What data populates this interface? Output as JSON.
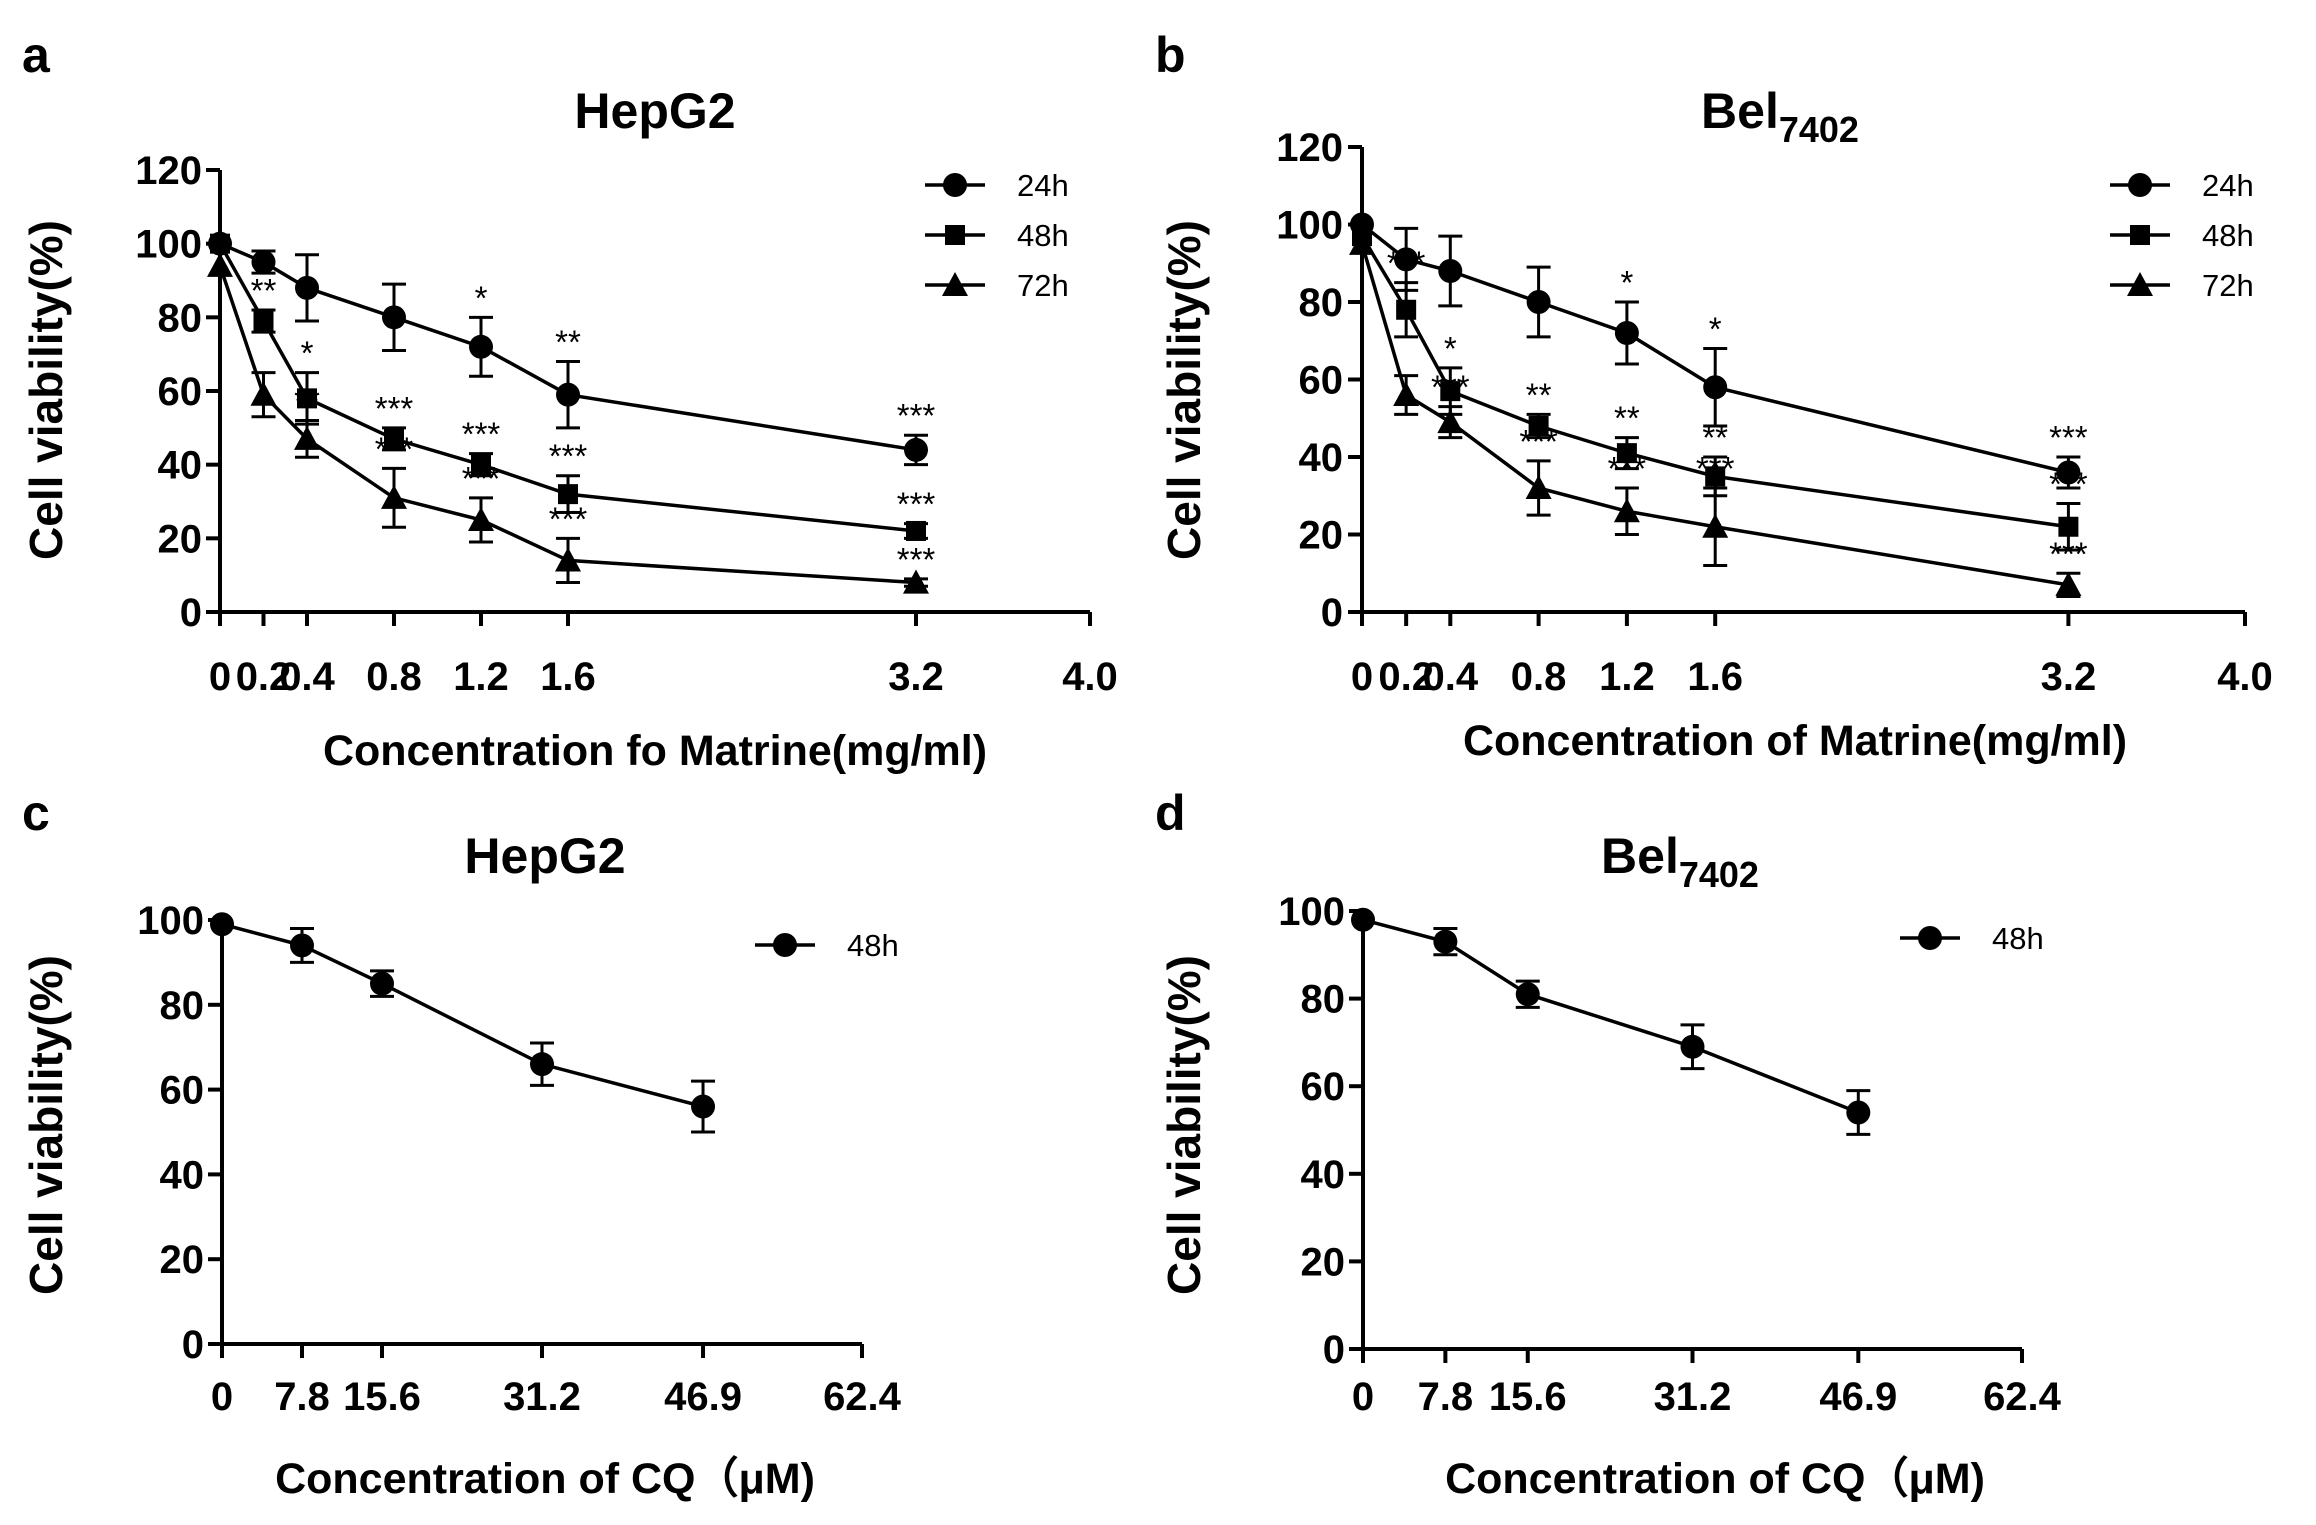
{
  "chart_data": [
    {
      "panel": "a",
      "type": "line",
      "title": "HepG2",
      "title_subscript": "",
      "xlabel": "Concentration fo Matrine(mg/ml)",
      "ylabel": "Cell viability(%)",
      "xlim": [
        0,
        4.0
      ],
      "ylim": [
        0,
        120
      ],
      "x_ticks": [
        0,
        0.2,
        0.4,
        0.8,
        1.2,
        1.6,
        3.2,
        4.0
      ],
      "x_tick_labels": [
        "0",
        "0.2",
        "0.4",
        "0.8",
        "1.2",
        "1.6",
        "3.2",
        "4.0"
      ],
      "y_ticks": [
        0,
        20,
        40,
        60,
        80,
        100,
        120
      ],
      "x": [
        0,
        0.2,
        0.4,
        0.8,
        1.2,
        1.6,
        3.2
      ],
      "legend_position": "top-right",
      "series": [
        {
          "name": "24h",
          "marker": "circle",
          "values": [
            100,
            95,
            88,
            80,
            72,
            59,
            44
          ],
          "errors": [
            0,
            3,
            9,
            9,
            8,
            9,
            4
          ],
          "labels": [
            "",
            "",
            "",
            "",
            "*",
            "**",
            "***"
          ]
        },
        {
          "name": "48h",
          "marker": "square",
          "values": [
            100,
            79,
            58,
            47,
            40,
            32,
            22
          ],
          "errors": [
            0,
            3,
            7,
            3,
            3,
            5,
            2
          ],
          "labels": [
            "",
            "**",
            "*",
            "***",
            "***",
            "***",
            "***"
          ]
        },
        {
          "name": "72h",
          "marker": "triangle",
          "values": [
            94,
            59,
            47,
            31,
            25,
            14,
            8
          ],
          "errors": [
            0,
            6,
            5,
            8,
            6,
            6,
            1
          ],
          "labels": [
            "",
            "",
            "**",
            "***",
            "***",
            "***",
            "***"
          ]
        }
      ]
    },
    {
      "panel": "b",
      "type": "line",
      "title": "Bel",
      "title_subscript": "7402",
      "xlabel": "Concentration of Matrine(mg/ml)",
      "ylabel": "Cell viability(%)",
      "xlim": [
        0,
        4.0
      ],
      "ylim": [
        0,
        120
      ],
      "x_ticks": [
        0,
        0.2,
        0.4,
        0.8,
        1.2,
        1.6,
        3.2,
        4.0
      ],
      "x_tick_labels": [
        "0",
        "0.2",
        "0.4",
        "0.8",
        "1.2",
        "1.6",
        "3.2",
        "4.0"
      ],
      "y_ticks": [
        0,
        20,
        40,
        60,
        80,
        100,
        120
      ],
      "x": [
        0,
        0.2,
        0.4,
        0.8,
        1.2,
        1.6,
        3.2
      ],
      "legend_position": "top-right",
      "series": [
        {
          "name": "24h",
          "marker": "circle",
          "values": [
            100,
            91,
            88,
            80,
            72,
            58,
            36
          ],
          "errors": [
            0,
            8,
            9,
            9,
            8,
            10,
            4
          ],
          "labels": [
            "",
            "",
            "",
            "",
            "*",
            "*",
            "***"
          ]
        },
        {
          "name": "48h",
          "marker": "square",
          "values": [
            97,
            78,
            57,
            48,
            41,
            35,
            22
          ],
          "errors": [
            0,
            7,
            6,
            3,
            4,
            5,
            6
          ],
          "labels": [
            "",
            "***",
            "*",
            "**",
            "**",
            "**",
            "***"
          ]
        },
        {
          "name": "72h",
          "marker": "triangle",
          "values": [
            95,
            56,
            49,
            32,
            26,
            22,
            7
          ],
          "errors": [
            0,
            5,
            4,
            7,
            6,
            10,
            3
          ],
          "labels": [
            "",
            "",
            "***",
            "***",
            "***",
            "***",
            "***"
          ]
        }
      ]
    },
    {
      "panel": "c",
      "type": "line",
      "title": "HepG2",
      "title_subscript": "",
      "xlabel": "Concentration of CQ（μM)",
      "ylabel": "Cell viability(%)",
      "xlim": [
        0,
        62.4
      ],
      "ylim": [
        0,
        100
      ],
      "x_ticks": [
        0,
        7.8,
        15.6,
        31.2,
        46.9,
        62.4
      ],
      "x_tick_labels": [
        "0",
        "7.8",
        "15.6",
        "31.2",
        "46.9",
        "62.4"
      ],
      "y_ticks": [
        0,
        20,
        40,
        60,
        80,
        100
      ],
      "x": [
        0,
        7.8,
        15.6,
        31.2,
        46.9
      ],
      "legend_position": "top-right",
      "series": [
        {
          "name": "48h",
          "marker": "circle",
          "values": [
            99,
            94,
            85,
            66,
            56
          ],
          "errors": [
            0,
            4,
            3,
            5,
            6
          ],
          "labels": [
            "",
            "",
            "",
            "",
            ""
          ]
        }
      ]
    },
    {
      "panel": "d",
      "type": "line",
      "title": "Bel",
      "title_subscript": "7402",
      "xlabel": "Concentration of CQ（μM)",
      "ylabel": "Cell viability(%)",
      "xlim": [
        0,
        62.4
      ],
      "ylim": [
        0,
        100
      ],
      "x_ticks": [
        0,
        7.8,
        15.6,
        31.2,
        46.9,
        62.4
      ],
      "x_tick_labels": [
        "0",
        "7.8",
        "15.6",
        "31.2",
        "46.9",
        "62.4"
      ],
      "y_ticks": [
        0,
        20,
        40,
        60,
        80,
        100
      ],
      "x": [
        0,
        7.8,
        15.6,
        31.2,
        46.9
      ],
      "legend_position": "top-right",
      "series": [
        {
          "name": "48h",
          "marker": "circle",
          "values": [
            98,
            93,
            81,
            69,
            54
          ],
          "errors": [
            0,
            3,
            3,
            5,
            5
          ],
          "labels": [
            "",
            "",
            "",
            "",
            ""
          ]
        }
      ]
    }
  ]
}
